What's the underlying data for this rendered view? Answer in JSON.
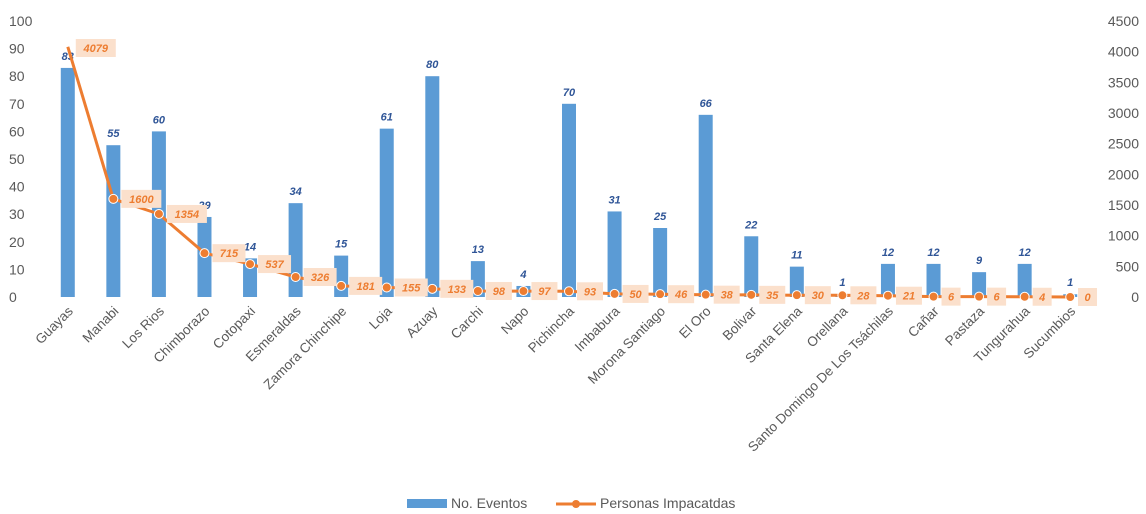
{
  "chart_data": {
    "type": "bar",
    "categories": [
      "Guayas",
      "Manabi",
      "Los Rios",
      "Chimborazo",
      "Cotopaxi",
      "Esmeraldas",
      "Zamora Chinchipe",
      "Loja",
      "Azuay",
      "Carchi",
      "Napo",
      "Pichincha",
      "Imbabura",
      "Morona Santiago",
      "El Oro",
      "Bolivar",
      "Santa Elena",
      "Orellana",
      "Santo Domingo De Los Tsáchilas",
      "Cañar",
      "Pastaza",
      "Tungurahua",
      "Sucumbios"
    ],
    "series": [
      {
        "name": "No. Eventos",
        "type": "bar",
        "axis": "left",
        "color": "#5b9bd5",
        "values": [
          83,
          55,
          60,
          29,
          14,
          34,
          15,
          61,
          80,
          13,
          4,
          70,
          31,
          25,
          66,
          22,
          11,
          1,
          12,
          12,
          9,
          12,
          1
        ]
      },
      {
        "name": "Personas Impacatdas",
        "type": "line",
        "axis": "right",
        "color": "#ed7d31",
        "values": [
          4079,
          1600,
          1354,
          715,
          537,
          326,
          181,
          155,
          133,
          98,
          97,
          93,
          50,
          46,
          38,
          35,
          30,
          28,
          21,
          6,
          6,
          4,
          0
        ]
      }
    ],
    "ylim_left": [
      0,
      100
    ],
    "yticks_left": [
      0,
      10,
      20,
      30,
      40,
      50,
      60,
      70,
      80,
      90,
      100
    ],
    "ylim_right": [
      0,
      4500
    ],
    "yticks_right": [
      0,
      500,
      1000,
      1500,
      2000,
      2500,
      3000,
      3500,
      4000,
      4500
    ],
    "grid": false,
    "legend_position": "bottom"
  }
}
